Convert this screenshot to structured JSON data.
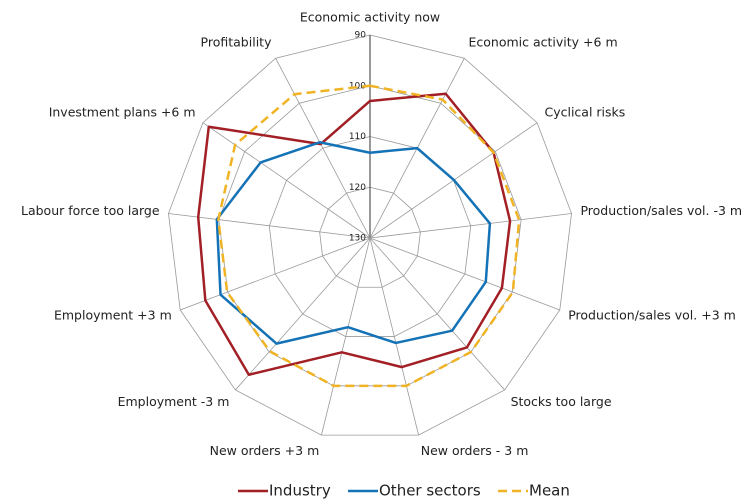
{
  "chart_data": {
    "type": "radar",
    "categories": [
      "Economic activity now",
      "Economic activity +6 m",
      "Cyclical risks",
      "Production/sales vol. -3 m",
      "Production/sales vol. +3 m",
      "Stocks too large",
      "New orders - 3 m",
      "New orders +3 m",
      "Employment -3 m",
      "Employment +3 m",
      "Labour force too large",
      "Investment plans +6 m",
      "Profitability"
    ],
    "series": [
      {
        "name": "Industry",
        "color": "#a21f25",
        "style": "solid",
        "values": [
          103,
          97.9,
          100.4,
          102.2,
          102.2,
          101.2,
          103.8,
          106.8,
          94,
          95.3,
          95.9,
          91.4,
          109.1
        ]
      },
      {
        "name": "Other sectors",
        "color": "#1472b6",
        "style": "solid",
        "values": [
          113.2,
          110,
          109.9,
          106.2,
          105.6,
          105.6,
          108.7,
          111.9,
          102.2,
          98.5,
          99.6,
          103.8,
          108.7
        ]
      },
      {
        "name": "Mean",
        "color": "#f0b323",
        "style": "dashed",
        "values": [
          100,
          99.2,
          100.4,
          100.4,
          99.9,
          100,
          100,
          100,
          100.2,
          99.9,
          99.9,
          97.7,
          98
        ]
      }
    ],
    "rlim": [
      130,
      90
    ],
    "rticks": [
      90,
      100,
      110,
      120,
      130
    ],
    "grid": true,
    "legend": "bottom"
  }
}
